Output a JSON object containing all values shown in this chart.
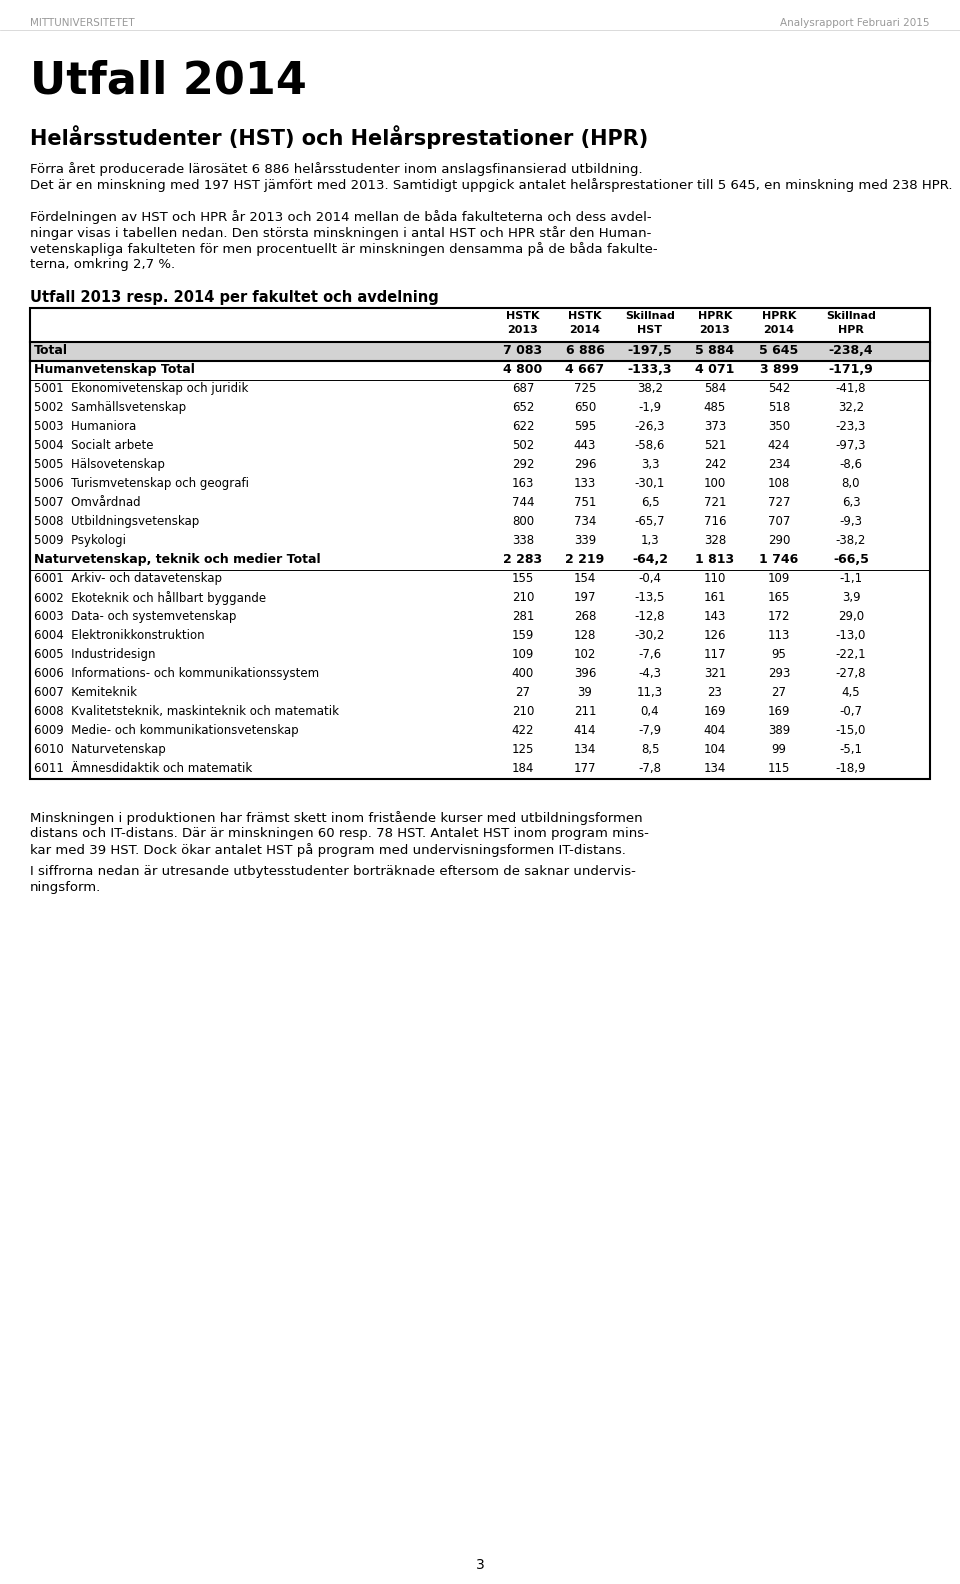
{
  "header_left": "MITTUNIVERSITETET",
  "header_right": "Analysrapport Februari 2015",
  "title": "Utfall 2014",
  "subtitle": "Helårsstudenter (HST) och Helårsprestationer (HPR)",
  "para1_line1": "Förra året producerade lärosätet 6 886 helårsstudenter inom anslagsfinansierad utbildning.",
  "para1_line2": "Det är en minskning med 197 HST jämfört med 2013. Samtidigt uppgick antalet helårsprestationer till 5 645, en minskning med 238 HPR.",
  "para2_line1": "Fördelningen av HST och HPR år 2013 och 2014 mellan de båda fakulteterna och dess avdel-",
  "para2_line2": "ningar visas i tabellen nedan. Den största minskningen i antal HST och HPR står den Human-",
  "para2_line3": "vetenskapliga fakulteten för men procentuellt är minskningen densamma på de båda fakulte-",
  "para2_line4": "terna, omkring 2,7 %.",
  "table_title": "Utfall 2013 resp. 2014 per fakultet och avdelning",
  "col_headers": [
    "",
    "HSTK\n2013",
    "HSTK\n2014",
    "Skillnad\nHST",
    "HPRK\n2013",
    "HPRK\n2014",
    "Skillnad\nHPR"
  ],
  "rows": [
    {
      "label": "Total",
      "values": [
        "7 083",
        "6 886",
        "-197,5",
        "5 884",
        "5 645",
        "-238,4"
      ],
      "style": "total"
    },
    {
      "label": "Humanvetenskap Total",
      "values": [
        "4 800",
        "4 667",
        "-133,3",
        "4 071",
        "3 899",
        "-171,9"
      ],
      "style": "section"
    },
    {
      "label": "5001  Ekonomivetenskap och juridik",
      "values": [
        "687",
        "725",
        "38,2",
        "584",
        "542",
        "-41,8"
      ],
      "style": "normal"
    },
    {
      "label": "5002  Samhällsvetenskap",
      "values": [
        "652",
        "650",
        "-1,9",
        "485",
        "518",
        "32,2"
      ],
      "style": "normal"
    },
    {
      "label": "5003  Humaniora",
      "values": [
        "622",
        "595",
        "-26,3",
        "373",
        "350",
        "-23,3"
      ],
      "style": "normal"
    },
    {
      "label": "5004  Socialt arbete",
      "values": [
        "502",
        "443",
        "-58,6",
        "521",
        "424",
        "-97,3"
      ],
      "style": "normal"
    },
    {
      "label": "5005  Hälsovetenskap",
      "values": [
        "292",
        "296",
        "3,3",
        "242",
        "234",
        "-8,6"
      ],
      "style": "normal"
    },
    {
      "label": "5006  Turismvetenskap och geografi",
      "values": [
        "163",
        "133",
        "-30,1",
        "100",
        "108",
        "8,0"
      ],
      "style": "normal"
    },
    {
      "label": "5007  Omvårdnad",
      "values": [
        "744",
        "751",
        "6,5",
        "721",
        "727",
        "6,3"
      ],
      "style": "normal"
    },
    {
      "label": "5008  Utbildningsvetenskap",
      "values": [
        "800",
        "734",
        "-65,7",
        "716",
        "707",
        "-9,3"
      ],
      "style": "normal"
    },
    {
      "label": "5009  Psykologi",
      "values": [
        "338",
        "339",
        "1,3",
        "328",
        "290",
        "-38,2"
      ],
      "style": "normal"
    },
    {
      "label": "Naturvetenskap, teknik och medier Total",
      "values": [
        "2 283",
        "2 219",
        "-64,2",
        "1 813",
        "1 746",
        "-66,5"
      ],
      "style": "section"
    },
    {
      "label": "6001  Arkiv- och datavetenskap",
      "values": [
        "155",
        "154",
        "-0,4",
        "110",
        "109",
        "-1,1"
      ],
      "style": "normal"
    },
    {
      "label": "6002  Ekoteknik och hållbart byggande",
      "values": [
        "210",
        "197",
        "-13,5",
        "161",
        "165",
        "3,9"
      ],
      "style": "normal"
    },
    {
      "label": "6003  Data- och systemvetenskap",
      "values": [
        "281",
        "268",
        "-12,8",
        "143",
        "172",
        "29,0"
      ],
      "style": "normal"
    },
    {
      "label": "6004  Elektronikkonstruktion",
      "values": [
        "159",
        "128",
        "-30,2",
        "126",
        "113",
        "-13,0"
      ],
      "style": "normal"
    },
    {
      "label": "6005  Industridesign",
      "values": [
        "109",
        "102",
        "-7,6",
        "117",
        "95",
        "-22,1"
      ],
      "style": "normal"
    },
    {
      "label": "6006  Informations- och kommunikationssystem",
      "values": [
        "400",
        "396",
        "-4,3",
        "321",
        "293",
        "-27,8"
      ],
      "style": "normal"
    },
    {
      "label": "6007  Kemiteknik",
      "values": [
        "27",
        "39",
        "11,3",
        "23",
        "27",
        "4,5"
      ],
      "style": "normal"
    },
    {
      "label": "6008  Kvalitetsteknik, maskinteknik och matematik",
      "values": [
        "210",
        "211",
        "0,4",
        "169",
        "169",
        "-0,7"
      ],
      "style": "normal"
    },
    {
      "label": "6009  Medie- och kommunikationsvetenskap",
      "values": [
        "422",
        "414",
        "-7,9",
        "404",
        "389",
        "-15,0"
      ],
      "style": "normal"
    },
    {
      "label": "6010  Naturvetenskap",
      "values": [
        "125",
        "134",
        "8,5",
        "104",
        "99",
        "-5,1"
      ],
      "style": "normal"
    },
    {
      "label": "6011  Ämnesdidaktik och matematik",
      "values": [
        "184",
        "177",
        "-7,8",
        "134",
        "115",
        "-18,9"
      ],
      "style": "normal"
    }
  ],
  "para3_line1": "Minskningen i produktionen har främst skett inom fristående kurser med utbildningsformen",
  "para3_line2": "distans och IT-distans. Där är minskningen 60 resp. 78 HST. Antalet HST inom program mins-",
  "para3_line3": "kar med 39 HST. Dock ökar antalet HST på program med undervisningsformen IT-distans.",
  "para4_line1": "I siffrorna nedan är utresande utbytesstudenter borträknade eftersom de saknar undervis-",
  "para4_line2": "ningsform.",
  "page_number": "3",
  "bg_color": "#ffffff",
  "total_bg": "#d3d3d3",
  "table_border_color": "#000000"
}
